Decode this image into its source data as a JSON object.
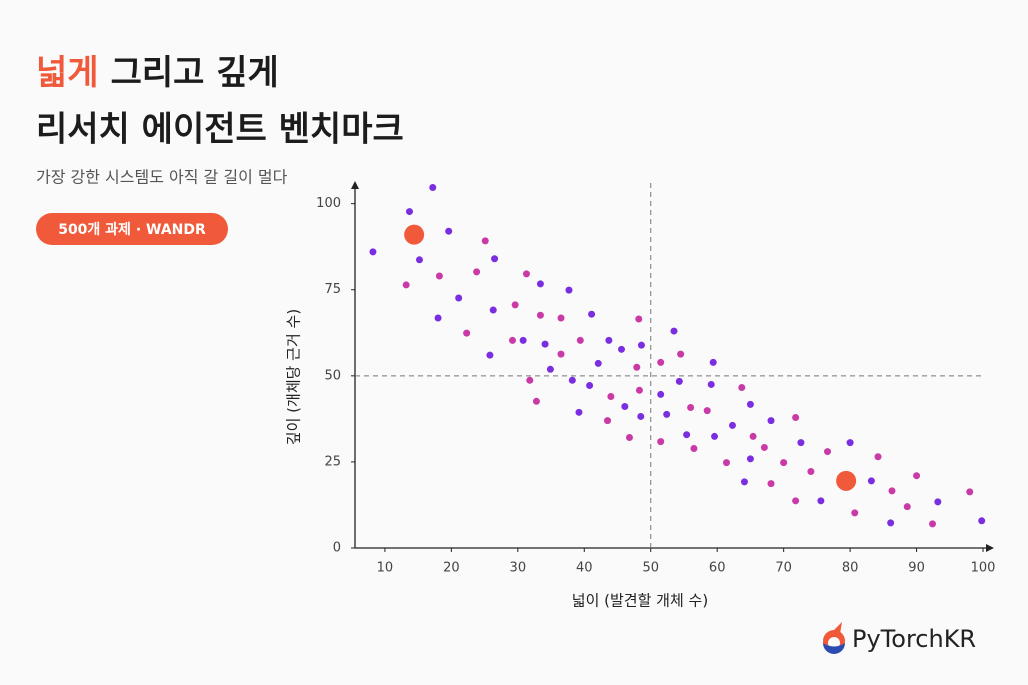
{
  "header": {
    "title_accent": "넓게",
    "title_rest": "그리고 깊게",
    "title_line2": "리서치 에이전트 벤치마크",
    "subtitle": "가장 강한 시스템도 아직 갈 길이 멀다",
    "badge": "500개 과제 · WANDR"
  },
  "logo": "PyTorchKR",
  "chart_data": {
    "type": "scatter",
    "x_label": "넓이 (발견할 개체 수)",
    "y_label": "깊이 (개체당 근거 수)",
    "xlim": [
      5.5,
      101.5
    ],
    "ylim": [
      0,
      106
    ],
    "xticks": [
      10,
      20,
      30,
      40,
      50,
      60,
      70,
      80,
      90,
      100
    ],
    "yticks": [
      0,
      25,
      50,
      75,
      100
    ],
    "reference": {
      "x": 50,
      "y": 50
    },
    "series": [
      {
        "color": "#7a2ee0",
        "size": 3.5,
        "x": [
          8.2,
          13.7,
          17.2,
          15.2,
          19.6,
          18,
          21.1,
          26.5,
          26.3,
          25.8,
          30.8,
          33.4,
          34.1,
          34.9,
          37.7,
          38.2,
          39.2,
          41.1,
          40.8,
          42.1,
          43.7,
          45.6,
          46.1,
          48.6,
          48.5,
          51.5,
          52.4,
          53.5,
          54.3,
          55.4,
          59.1,
          59.4,
          59.6,
          62.3,
          64.1,
          65,
          65,
          68.1,
          72.6,
          75.6,
          80,
          83.2,
          86.1,
          93.2,
          99.8
        ],
        "y": [
          86,
          97.7,
          104.7,
          83.7,
          92,
          66.8,
          72.6,
          84,
          69.1,
          56,
          60.3,
          76.7,
          59.2,
          51.9,
          74.9,
          48.7,
          39.4,
          67.9,
          47.2,
          53.6,
          60.3,
          57.7,
          41.1,
          58.9,
          38.2,
          44.6,
          38.8,
          63,
          48.4,
          32.9,
          47.5,
          53.9,
          32.4,
          35.6,
          19.2,
          41.7,
          25.9,
          37,
          30.6,
          13.7,
          30.6,
          19.5,
          7.3,
          13.4,
          7.9
        ]
      },
      {
        "color": "#c93aa6",
        "size": 3.5,
        "x": [
          13.2,
          18.2,
          22.3,
          23.8,
          25.1,
          29.6,
          29.2,
          31.3,
          31.8,
          32.8,
          33.4,
          36.5,
          36.5,
          39.4,
          44,
          43.5,
          46.8,
          48.2,
          47.9,
          48.3,
          51.5,
          51.5,
          54.5,
          56,
          56.5,
          58.5,
          61.4,
          63.7,
          65.4,
          67.1,
          68.1,
          70,
          71.8,
          71.8,
          74.1,
          76.6,
          80.7,
          84.2,
          86.3,
          88.6,
          90,
          92.4,
          98
        ],
        "y": [
          76.4,
          79,
          62.4,
          80.2,
          89.2,
          70.6,
          60.3,
          79.6,
          48.7,
          42.6,
          67.6,
          66.8,
          56.3,
          60.3,
          44,
          37,
          32.1,
          66.5,
          52.5,
          45.8,
          53.9,
          30.9,
          56.3,
          40.8,
          28.9,
          39.9,
          24.8,
          46.6,
          32.4,
          29.2,
          18.7,
          24.8,
          37.9,
          13.7,
          22.2,
          28,
          10.2,
          26.5,
          16.6,
          12,
          21,
          7,
          16.3
        ]
      },
      {
        "color": "#f05a3a",
        "size": 10,
        "x": [
          14.4,
          79.4
        ],
        "y": [
          91,
          19.5
        ]
      }
    ]
  }
}
